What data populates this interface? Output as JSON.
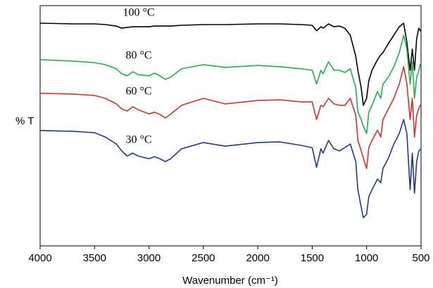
{
  "chart_data": {
    "type": "line",
    "x_label": "Wavenumber (cm⁻¹)",
    "y_label": "% T",
    "x": [
      4000,
      3700,
      3500,
      3400,
      3300,
      3250,
      3200,
      3150,
      3100,
      3000,
      2950,
      2900,
      2850,
      2800,
      2700,
      2500,
      2300,
      2000,
      1800,
      1600,
      1500,
      1460,
      1420,
      1400,
      1350,
      1300,
      1250,
      1200,
      1150,
      1100,
      1080,
      1050,
      1030,
      1000,
      980,
      950,
      900,
      870,
      850,
      800,
      750,
      700,
      660,
      630,
      600,
      580,
      560,
      540,
      520,
      500
    ],
    "xlim": [
      4000,
      500
    ],
    "xticks": [
      4000,
      3500,
      3000,
      2500,
      2000,
      1500,
      1000,
      500
    ],
    "ylim": [
      0,
      100
    ],
    "grid": false,
    "series": [
      {
        "name": "100 °C",
        "color": "#000000",
        "values": [
          92.7,
          92.4,
          92.4,
          92.1,
          91.5,
          90.6,
          90.9,
          91.2,
          91.2,
          91.2,
          91.5,
          91.5,
          91.5,
          91.5,
          91.8,
          92.1,
          92.1,
          92.4,
          92.4,
          92.1,
          91.8,
          89.5,
          91.2,
          90.6,
          92.4,
          91.2,
          91.5,
          90.6,
          87.7,
          78.9,
          73.1,
          65.8,
          58.5,
          61.4,
          68.7,
          73.1,
          77.5,
          79.5,
          80.4,
          84.2,
          87.7,
          91.2,
          92.7,
          84.8,
          73.1,
          81.9,
          73.1,
          86.3,
          90.6,
          89.2
        ]
      },
      {
        "name": "80 °C",
        "color": "#1fb050",
        "values": [
          77.5,
          76.9,
          76.3,
          75.4,
          73.7,
          71.6,
          70.8,
          72.5,
          71.3,
          70.8,
          71.9,
          70.8,
          69.3,
          70.2,
          73.7,
          75.4,
          74.3,
          75.1,
          74.6,
          73.7,
          73.1,
          67.3,
          73.1,
          71.6,
          76.6,
          73.1,
          73.1,
          72.2,
          73.7,
          65.8,
          55.6,
          52.6,
          49.7,
          46.8,
          55.6,
          58.5,
          64.3,
          61.4,
          67.3,
          70.2,
          74.6,
          80.4,
          87.7,
          81.9,
          67.3,
          76.6,
          61.4,
          70.2,
          73.1,
          76.6
        ]
      },
      {
        "name": "60 °C",
        "color": "#d9302a",
        "values": [
          63.5,
          63.2,
          62.6,
          61.4,
          59.1,
          57.0,
          56.1,
          57.9,
          56.7,
          54.9,
          55.6,
          54.7,
          53.2,
          54.9,
          58.5,
          61.4,
          59.1,
          60.5,
          60.8,
          59.9,
          59.9,
          52.6,
          58.5,
          57.9,
          61.4,
          59.1,
          58.5,
          58.5,
          61.4,
          54.4,
          43.9,
          39.5,
          36.5,
          32.2,
          40.9,
          43.9,
          48.2,
          45.3,
          52.6,
          57.0,
          61.4,
          67.3,
          74.6,
          67.3,
          52.6,
          61.4,
          45.3,
          54.4,
          57.3,
          59.1
        ]
      },
      {
        "name": "30 °C",
        "color": "#1f3a8a",
        "values": [
          48.0,
          47.7,
          47.1,
          45.3,
          42.4,
          39.5,
          37.4,
          38.6,
          37.4,
          36.3,
          37.1,
          36.3,
          35.1,
          36.3,
          40.4,
          43.0,
          41.5,
          43.0,
          43.3,
          41.8,
          40.9,
          32.7,
          40.4,
          38.6,
          43.9,
          40.4,
          39.5,
          40.9,
          42.4,
          35.1,
          23.4,
          16.1,
          11.7,
          13.2,
          20.5,
          23.4,
          27.8,
          26.3,
          32.2,
          36.5,
          42.4,
          46.8,
          52.6,
          46.8,
          23.4,
          38.6,
          21.9,
          35.1,
          39.5,
          40.4
        ]
      }
    ]
  }
}
